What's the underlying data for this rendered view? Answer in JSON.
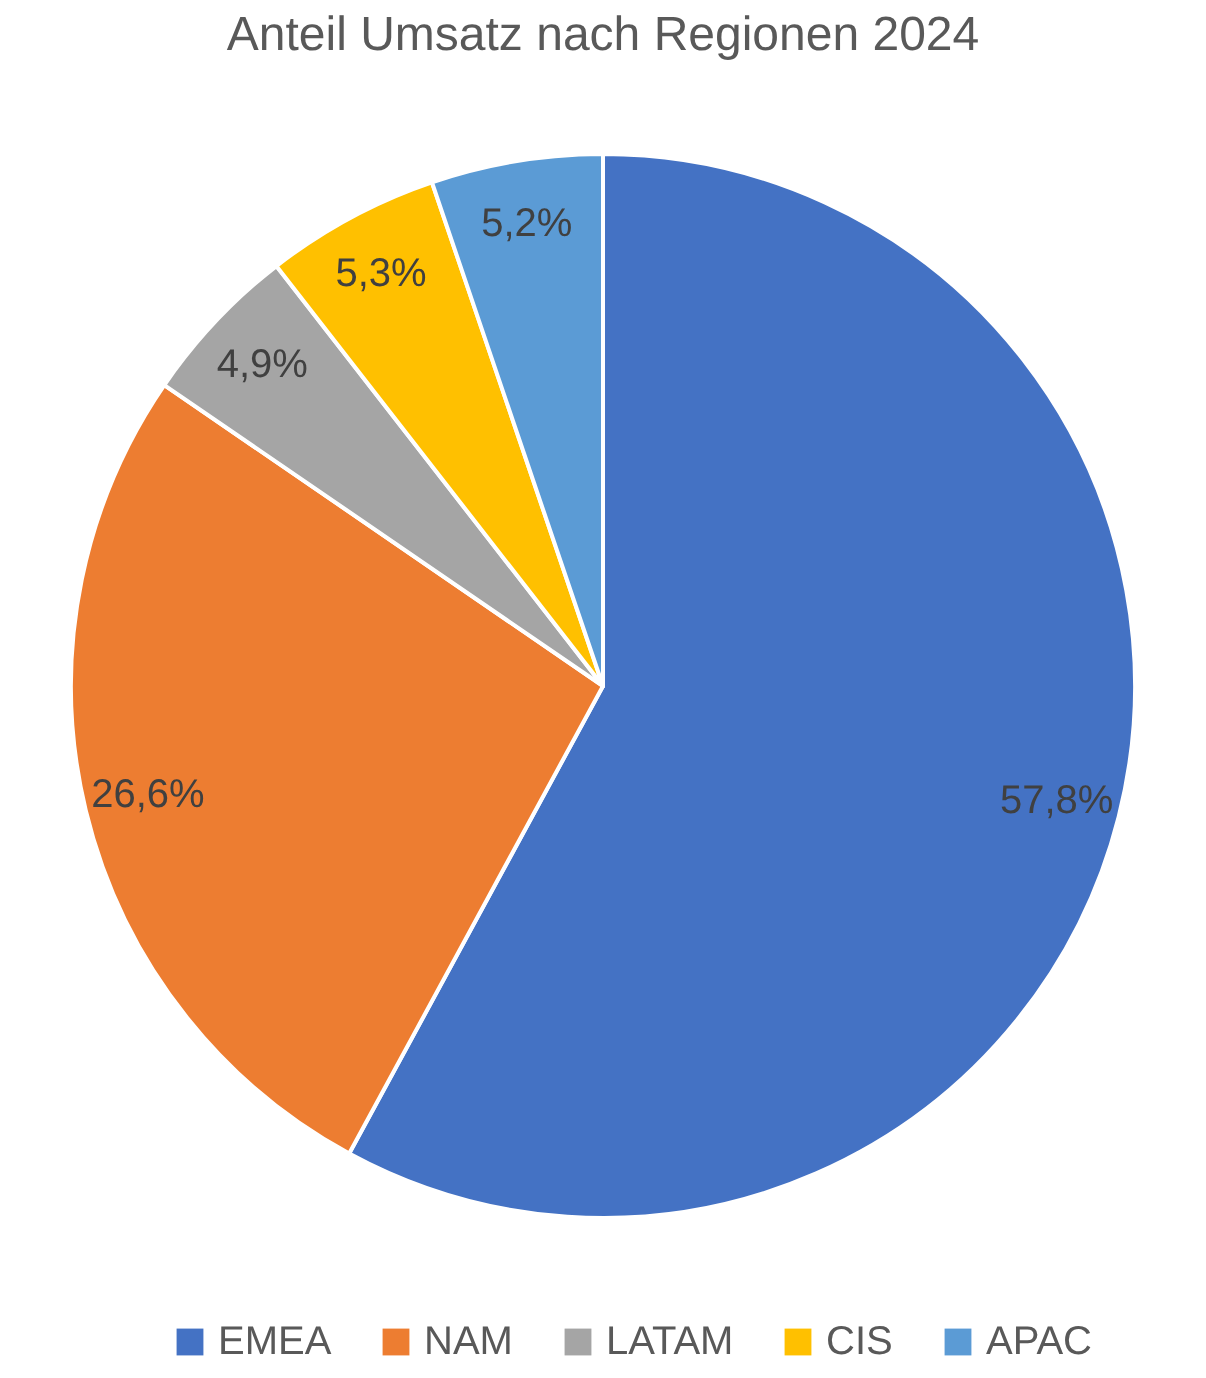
{
  "chart_data": {
    "type": "pie",
    "title": "Anteil Umsatz nach Regionen 2024",
    "categories": [
      "EMEA",
      "NAM",
      "LATAM",
      "CIS",
      "APAC"
    ],
    "values": [
      57.8,
      26.6,
      4.9,
      5.3,
      5.2
    ],
    "colors": [
      "#4472c4",
      "#ed7d31",
      "#a5a5a5",
      "#ffc000",
      "#5b9bd5"
    ],
    "value_labels": [
      "57,8%",
      "26,6%",
      "4,9%",
      "5,3%",
      "5,2%"
    ],
    "legend": "bottom"
  }
}
